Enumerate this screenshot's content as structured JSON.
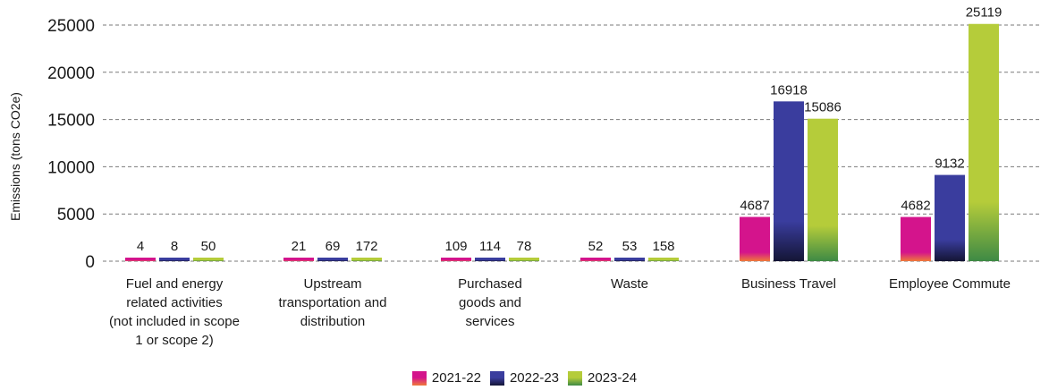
{
  "chart_data": {
    "type": "bar",
    "title": "",
    "xlabel": "",
    "ylabel": "Emissions (tons CO2e)",
    "ylim": [
      0,
      25000
    ],
    "yticks": [
      0,
      5000,
      10000,
      15000,
      20000,
      25000
    ],
    "grid": true,
    "legend_position": "bottom",
    "categories": [
      [
        "Fuel and energy",
        "related activities",
        "(not included in scope",
        "1 or scope 2)"
      ],
      [
        "Upstream",
        "transportation and",
        "distribution"
      ],
      [
        "Purchased",
        "goods and",
        "services"
      ],
      [
        "Waste"
      ],
      [
        "Business Travel"
      ],
      [
        "Employee Commute"
      ]
    ],
    "series": [
      {
        "name": "2021-22",
        "values": [
          4,
          21,
          109,
          52,
          4687,
          4682
        ],
        "color_top": "#d4148c",
        "color_bottom": "#f07a3a"
      },
      {
        "name": "2022-23",
        "values": [
          8,
          69,
          114,
          53,
          16918,
          9132
        ],
        "color_top": "#3a3d9e",
        "color_bottom": "#141535"
      },
      {
        "name": "2023-24",
        "values": [
          50,
          172,
          78,
          158,
          15086,
          25119
        ],
        "color_top": "#b5cc3a",
        "color_bottom": "#3e8a45"
      }
    ]
  }
}
